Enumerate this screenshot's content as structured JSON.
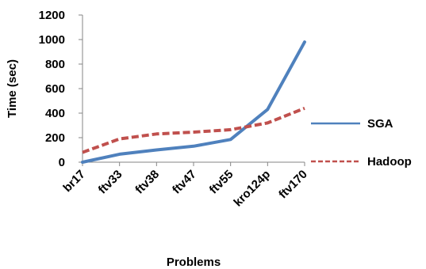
{
  "chart_data": {
    "type": "line",
    "title": "",
    "xlabel": "Problems",
    "ylabel": "Time (sec)",
    "categories": [
      "br17",
      "ftv33",
      "ftv38",
      "ftv47",
      "ftv55",
      "kro124p",
      "ftv170"
    ],
    "ylim": [
      0,
      1200
    ],
    "yticks": [
      0,
      200,
      400,
      600,
      800,
      1000,
      1200
    ],
    "grid": false,
    "legend_position": "right",
    "series": [
      {
        "name": "SGA",
        "values": [
          0,
          65,
          100,
          130,
          185,
          430,
          980
        ],
        "color": "#4f81bd",
        "style": "solid"
      },
      {
        "name": "Hadoop",
        "values": [
          80,
          190,
          230,
          245,
          265,
          320,
          440
        ],
        "color": "#c0504d",
        "style": "dashed"
      }
    ]
  }
}
